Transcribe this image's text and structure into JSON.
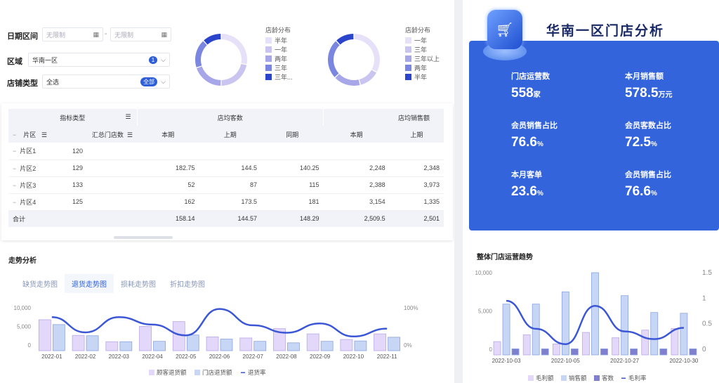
{
  "filters": {
    "date_label": "日期区间",
    "date_start_placeholder": "无限制",
    "date_sep": "-",
    "date_end_placeholder": "无限制",
    "region_label": "区域",
    "region_value": "华南一区",
    "region_badge": "1",
    "store_type_label": "店铺类型",
    "store_type_value": "全选",
    "store_type_badge": "全部"
  },
  "donuts": [
    {
      "title": "店龄分布",
      "slices": [
        {
          "label": "半年",
          "value": 28,
          "color": "#e6e0f8"
        },
        {
          "label": "一年",
          "value": 22,
          "color": "#c9c4f0"
        },
        {
          "label": "两年",
          "value": 20,
          "color": "#a6a6e8"
        },
        {
          "label": "三年",
          "value": 18,
          "color": "#7a86e0"
        },
        {
          "label": "三年...",
          "value": 12,
          "color": "#2a44cc"
        }
      ]
    },
    {
      "title": "店龄分布",
      "slices": [
        {
          "label": "一年",
          "value": 33,
          "color": "#e6e0f8"
        },
        {
          "label": "三年",
          "value": 13,
          "color": "#c9c4f0"
        },
        {
          "label": "三年以上",
          "value": 17,
          "color": "#a6a6e8"
        },
        {
          "label": "两年",
          "value": 25,
          "color": "#7a86e0"
        },
        {
          "label": "半年",
          "value": 12,
          "color": "#2a44cc"
        }
      ]
    }
  ],
  "table": {
    "group_header": "指标类型",
    "col_group_1": "店均客数",
    "col_group_2": "店均销售额",
    "area_header": "片区",
    "count_header": "汇总门店数",
    "sub_headers": [
      "本期",
      "上期",
      "同期",
      "本期",
      "上期"
    ],
    "rows": [
      {
        "area": "片区1",
        "count": "120",
        "values": [
          "",
          "",
          "",
          "",
          ""
        ]
      },
      {
        "area": "片区2",
        "count": "129",
        "values": [
          "182.75",
          "144.5",
          "140.25",
          "2,248",
          "2,348"
        ]
      },
      {
        "area": "片区3",
        "count": "133",
        "values": [
          "52",
          "87",
          "115",
          "2,388",
          "3,973"
        ]
      },
      {
        "area": "片区4",
        "count": "125",
        "values": [
          "162",
          "173.5",
          "181",
          "3,154",
          "1,335"
        ]
      }
    ],
    "total": {
      "label": "合计",
      "values": [
        "158.14",
        "144.57",
        "148.29",
        "2,509.5",
        "2,501"
      ]
    }
  },
  "trend": {
    "title": "走势分析",
    "tabs": [
      {
        "label": "缺货走势图",
        "active": false
      },
      {
        "label": "退货走势图",
        "active": true
      },
      {
        "label": "损耗走势图",
        "active": false
      },
      {
        "label": "折扣走势图",
        "active": false
      }
    ]
  },
  "right": {
    "title": "华南一区门店分析",
    "kpis": [
      {
        "label": "门店运营数",
        "value": "558",
        "unit": "家"
      },
      {
        "label": "本月销售额",
        "value": "578.5",
        "unit": "万元"
      },
      {
        "label": "会员销售占比",
        "value": "76.6",
        "unit": "%"
      },
      {
        "label": "会员客数占比",
        "value": "72.5",
        "unit": "%"
      },
      {
        "label": "本月客单",
        "value": "23.6",
        "unit": "%"
      },
      {
        "label": "会员销售占比",
        "value": "76.6",
        "unit": "%"
      }
    ],
    "chart_title": "整体门店运营趋势"
  },
  "chart_data": [
    {
      "type": "bar",
      "categories": [
        "2022-01",
        "2022-02",
        "2022-03",
        "2022-04",
        "2022-05",
        "2022-06",
        "2022-07",
        "2022-08",
        "2022-09",
        "2022-10",
        "2022-11"
      ],
      "series": [
        {
          "name": "顾客退货额",
          "type": "bar",
          "color": "#e3d8fa",
          "values": [
            6800,
            2600,
            900,
            5000,
            6300,
            2200,
            1900,
            4400,
            3000,
            1500,
            3000
          ]
        },
        {
          "name": "门店退货额",
          "type": "bar",
          "color": "#c8d6f6",
          "values": [
            5500,
            2500,
            900,
            1000,
            2700,
            1600,
            1000,
            600,
            1000,
            1100,
            2100
          ]
        },
        {
          "name": "退货率",
          "type": "line",
          "color": "#3b57d6",
          "axis": "right",
          "values": [
            75,
            34,
            75,
            55,
            26,
            97,
            53,
            33,
            58,
            23,
            44
          ]
        }
      ],
      "yticks": [
        "10,000",
        "5,000",
        "0"
      ],
      "ylim": [
        0,
        10000
      ],
      "y2ticks": [
        "100%",
        "0%"
      ],
      "y2lim": [
        0,
        100
      ]
    },
    {
      "type": "bar",
      "categories": [
        "2022-10-03",
        "",
        "2022-10-05",
        "",
        "2022-10-27",
        "",
        "2022-10-30"
      ],
      "series": [
        {
          "name": "毛利额",
          "type": "bar",
          "color": "#e3d8fa",
          "values": [
            1000,
            1900,
            700,
            2200,
            1500,
            2500,
            2700
          ]
        },
        {
          "name": "销售额",
          "type": "bar",
          "color": "#c8d6f6",
          "values": [
            5900,
            5900,
            7500,
            10000,
            7000,
            4800,
            4700
          ]
        },
        {
          "name": "客数",
          "type": "bar",
          "color": "#7f7fcf",
          "values": [
            60,
            60,
            60,
            60,
            60,
            60,
            60
          ]
        },
        {
          "name": "毛利率",
          "type": "line",
          "color": "#3b57d6",
          "axis": "right",
          "values": [
            0.95,
            0.4,
            0.1,
            0.85,
            0.35,
            0.2,
            0.42
          ]
        }
      ],
      "yticks": [
        "10,000",
        "5,000",
        "0"
      ],
      "ylim": [
        0,
        10000
      ],
      "y2ticks": [
        "1.5",
        "1",
        "0.5",
        "0"
      ],
      "y2lim": [
        0,
        1.5
      ]
    }
  ]
}
